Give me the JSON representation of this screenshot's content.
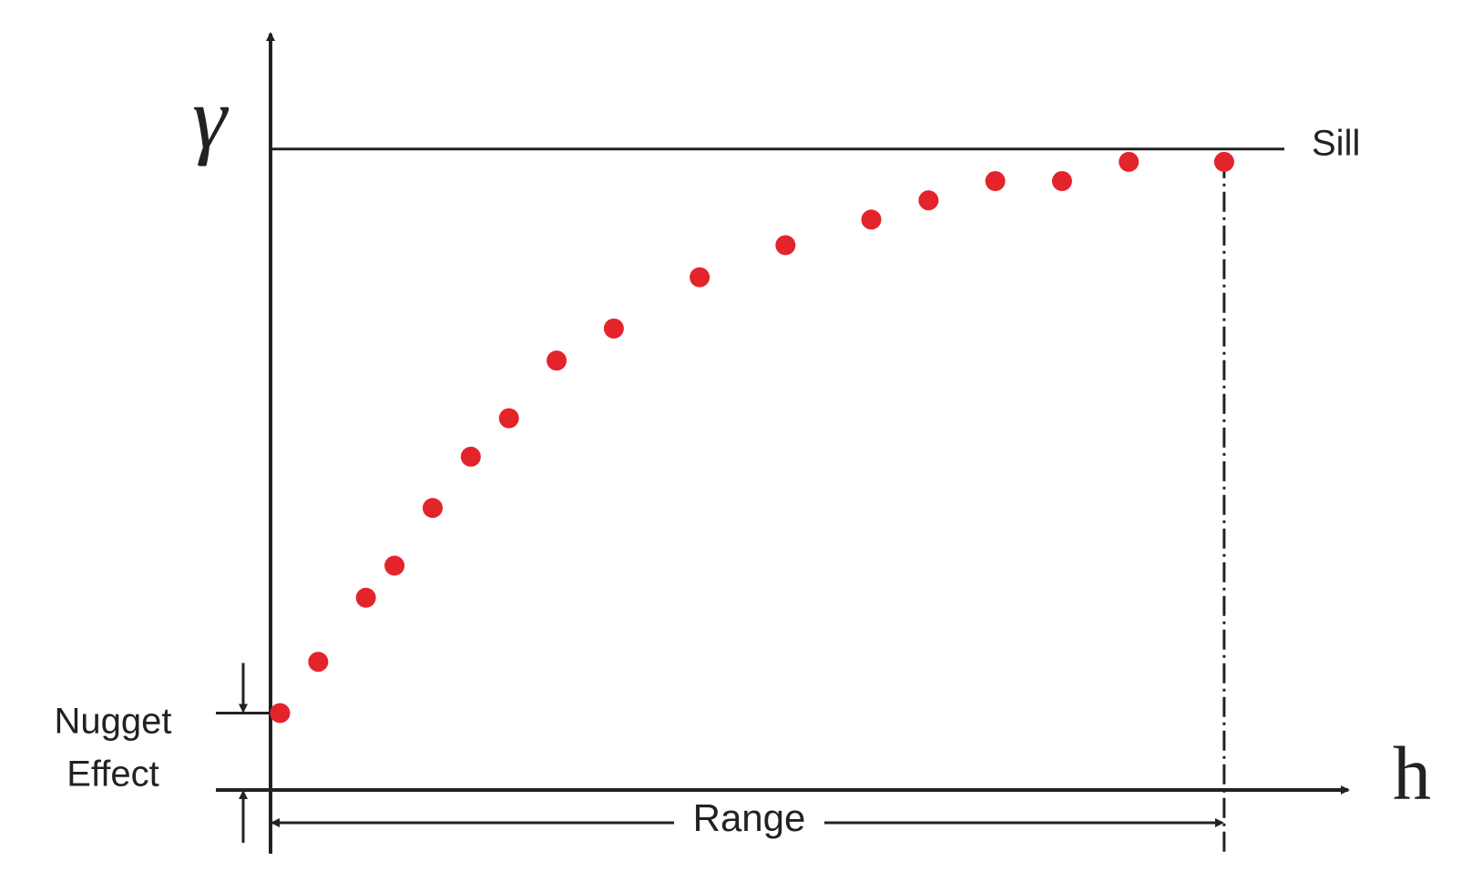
{
  "chart_data": {
    "type": "scatter",
    "y_label": "γ",
    "x_label": "h",
    "sill_label": "Sill",
    "range_label": "Range",
    "nugget_label": [
      "Nugget",
      "Effect"
    ],
    "x": [
      1,
      5,
      10,
      13,
      17,
      21,
      25,
      30,
      36,
      45,
      54,
      63,
      69,
      76,
      83,
      90,
      100
    ],
    "values": [
      12,
      20,
      30,
      35,
      44,
      52,
      58,
      67,
      72,
      80,
      85,
      89,
      92,
      95,
      95,
      98,
      98
    ],
    "color": "#e3242b",
    "sill": 100,
    "range": 100,
    "nugget": 12,
    "xlim": [
      0,
      113
    ],
    "ylim": [
      0,
      118
    ]
  }
}
